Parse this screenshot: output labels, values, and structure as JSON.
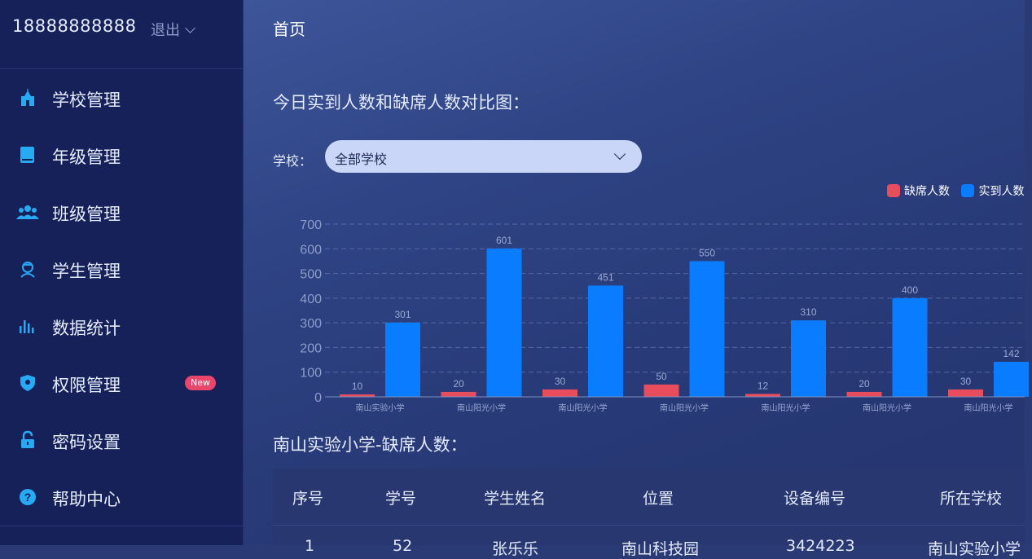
{
  "user": {
    "phone": "18888888888",
    "logout_label": "退出"
  },
  "sidebar": {
    "items": [
      {
        "label": "学校管理",
        "icon": "school-icon"
      },
      {
        "label": "年级管理",
        "icon": "book-icon"
      },
      {
        "label": "班级管理",
        "icon": "group-icon"
      },
      {
        "label": "学生管理",
        "icon": "student-icon"
      },
      {
        "label": "数据统计",
        "icon": "bar-chart-icon"
      },
      {
        "label": "权限管理",
        "icon": "shield-icon",
        "badge": "New"
      },
      {
        "label": "密码设置",
        "icon": "lock-icon"
      },
      {
        "label": "帮助中心",
        "icon": "help-icon"
      }
    ]
  },
  "header": {
    "title": "首页"
  },
  "attendance": {
    "section_title": "今日实到人数和缺席人数对比图：",
    "school_filter_label": "学校：",
    "school_filter_value": "全部学校"
  },
  "colors": {
    "absent": "#e74d5d",
    "present": "#0a7cff",
    "sidebar_bg": "#16215a"
  },
  "chart_data": {
    "type": "bar",
    "categories": [
      "南山实验小学",
      "南山阳光小学",
      "南山阳光小学",
      "南山阳光小学",
      "南山阳光小学",
      "南山阳光小学",
      "南山阳光小学"
    ],
    "series": [
      {
        "name": "缺席人数",
        "values": [
          10,
          20,
          30,
          50,
          12,
          20,
          30
        ]
      },
      {
        "name": "实到人数",
        "values": [
          301,
          601,
          451,
          550,
          310,
          400,
          142
        ]
      }
    ],
    "y_ticks": [
      "0",
      "100",
      "200",
      "300",
      "400",
      "500",
      "600",
      "700"
    ],
    "ylim": [
      0,
      700
    ],
    "grid": true,
    "legend": "top-right"
  },
  "absent_table": {
    "title": "南山实验小学-缺席人数：",
    "columns": [
      "序号",
      "学号",
      "学生姓名",
      "位置",
      "设备编号",
      "所在学校"
    ],
    "rows": [
      [
        "1",
        "52",
        "张乐乐",
        "南山科技园",
        "3424223",
        "南山实验小学"
      ]
    ]
  }
}
